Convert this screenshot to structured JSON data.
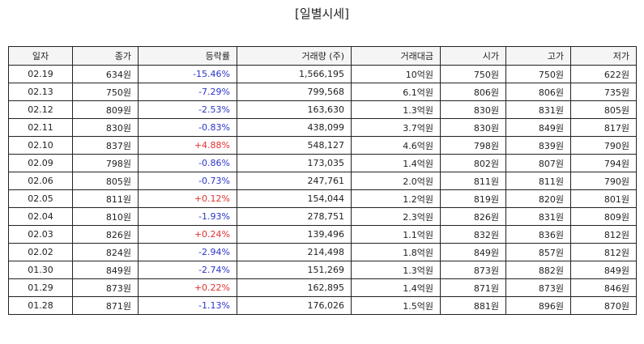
{
  "title": "[일별시세]",
  "columns": [
    "일자",
    "종가",
    "등락률",
    "거래량 (주)",
    "거래대금",
    "시가",
    "고가",
    "저가"
  ],
  "rows": [
    {
      "date": "02.19",
      "close": "634원",
      "change": "-15.46%",
      "volume": "1,566,195",
      "amount": "10억원",
      "open": "750원",
      "high": "750원",
      "low": "622원"
    },
    {
      "date": "02.13",
      "close": "750원",
      "change": "-7.29%",
      "volume": "799,568",
      "amount": "6.1억원",
      "open": "806원",
      "high": "806원",
      "low": "735원"
    },
    {
      "date": "02.12",
      "close": "809원",
      "change": "-2.53%",
      "volume": "163,630",
      "amount": "1.3억원",
      "open": "830원",
      "high": "831원",
      "low": "805원"
    },
    {
      "date": "02.11",
      "close": "830원",
      "change": "-0.83%",
      "volume": "438,099",
      "amount": "3.7억원",
      "open": "830원",
      "high": "849원",
      "low": "817원"
    },
    {
      "date": "02.10",
      "close": "837원",
      "change": "+4.88%",
      "volume": "548,127",
      "amount": "4.6억원",
      "open": "798원",
      "high": "839원",
      "low": "790원"
    },
    {
      "date": "02.09",
      "close": "798원",
      "change": "-0.86%",
      "volume": "173,035",
      "amount": "1.4억원",
      "open": "802원",
      "high": "807원",
      "low": "794원"
    },
    {
      "date": "02.06",
      "close": "805원",
      "change": "-0.73%",
      "volume": "247,761",
      "amount": "2.0억원",
      "open": "811원",
      "high": "811원",
      "low": "790원"
    },
    {
      "date": "02.05",
      "close": "811원",
      "change": "+0.12%",
      "volume": "154,044",
      "amount": "1.2억원",
      "open": "819원",
      "high": "820원",
      "low": "801원"
    },
    {
      "date": "02.04",
      "close": "810원",
      "change": "-1.93%",
      "volume": "278,751",
      "amount": "2.3억원",
      "open": "826원",
      "high": "831원",
      "low": "809원"
    },
    {
      "date": "02.03",
      "close": "826원",
      "change": "+0.24%",
      "volume": "139,496",
      "amount": "1.1억원",
      "open": "832원",
      "high": "836원",
      "low": "812원"
    },
    {
      "date": "02.02",
      "close": "824원",
      "change": "-2.94%",
      "volume": "214,498",
      "amount": "1.8억원",
      "open": "849원",
      "high": "857원",
      "low": "812원"
    },
    {
      "date": "01.30",
      "close": "849원",
      "change": "-2.74%",
      "volume": "151,269",
      "amount": "1.3억원",
      "open": "873원",
      "high": "882원",
      "low": "849원"
    },
    {
      "date": "01.29",
      "close": "873원",
      "change": "+0.22%",
      "volume": "162,895",
      "amount": "1.4억원",
      "open": "871원",
      "high": "873원",
      "low": "846원"
    },
    {
      "date": "01.28",
      "close": "871원",
      "change": "-1.13%",
      "volume": "176,026",
      "amount": "1.5억원",
      "open": "881원",
      "high": "896원",
      "low": "870원"
    }
  ],
  "colors": {
    "down": "#2b35c9",
    "up": "#e0312f",
    "header_bg": "#f5f5f5",
    "border": "#222222"
  }
}
